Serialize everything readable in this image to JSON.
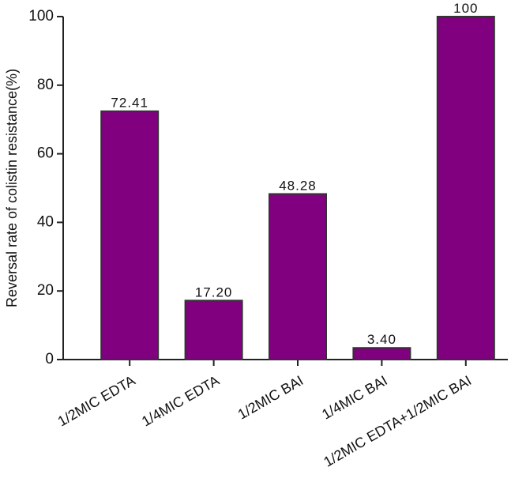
{
  "chart_data": {
    "type": "bar",
    "y_label": "Reversal rate of colistin resistance(%)",
    "categories": [
      "1/2MIC EDTA",
      "1/4MIC EDTA",
      "1/2MIC BAI",
      "1/4MIC BAI",
      "1/2MIC EDTA+1/2MIC BAI"
    ],
    "values": [
      72.41,
      17.2,
      48.28,
      3.4,
      100
    ],
    "value_labels": [
      "72.41",
      "17.20",
      "48.28",
      "3.40",
      "100"
    ],
    "color": "#800080",
    "ylim": [
      0,
      100
    ],
    "yticks": [
      0,
      20,
      40,
      60,
      80,
      100
    ]
  }
}
